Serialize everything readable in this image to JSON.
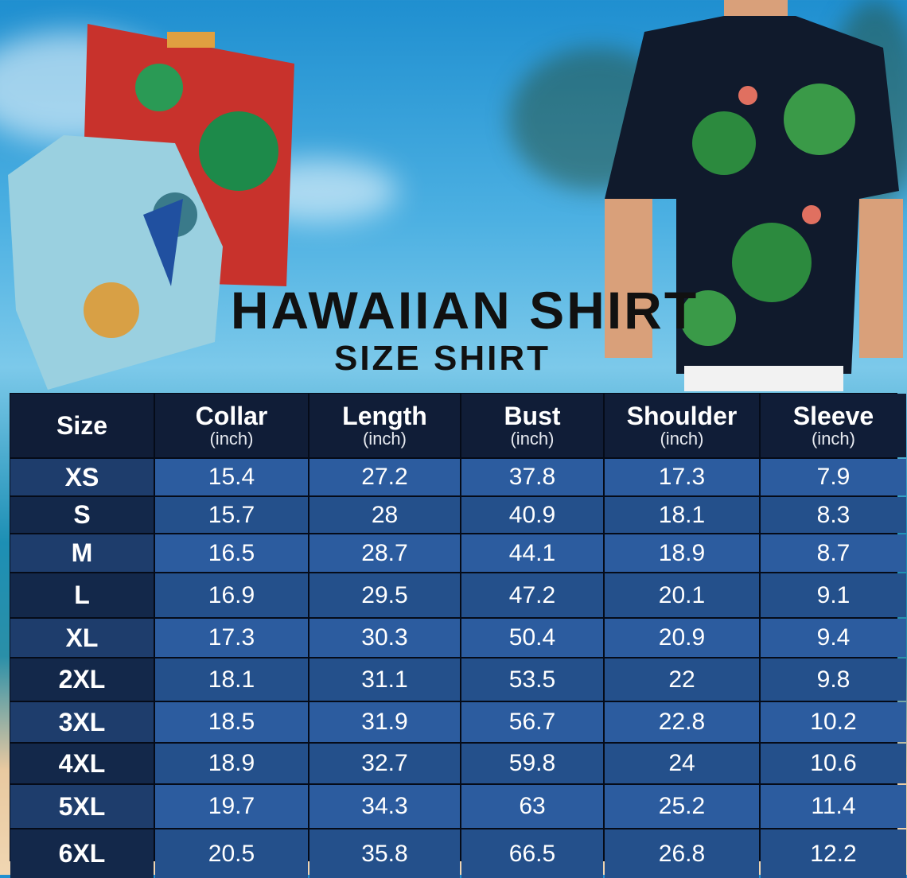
{
  "title": "HAWAIIAN SHIRT",
  "subtitle": "SIZE SHIRT",
  "colors": {
    "header_bg": "#101d37",
    "row_light": "#2c5c9f",
    "row_dark": "#24508b",
    "size_col": "#13284a"
  },
  "table": {
    "headers": [
      {
        "label": "Size",
        "unit": ""
      },
      {
        "label": "Collar",
        "unit": "(inch)"
      },
      {
        "label": "Length",
        "unit": "(inch)"
      },
      {
        "label": "Bust",
        "unit": "(inch)"
      },
      {
        "label": "Shoulder",
        "unit": "(inch)"
      },
      {
        "label": "Sleeve",
        "unit": "(inch)"
      }
    ],
    "rows": [
      [
        "XS",
        "15.4",
        "27.2",
        "37.8",
        "17.3",
        "7.9"
      ],
      [
        "S",
        "15.7",
        "28",
        "40.9",
        "18.1",
        "8.3"
      ],
      [
        "M",
        "16.5",
        "28.7",
        "44.1",
        "18.9",
        "8.7"
      ],
      [
        "L",
        "16.9",
        "29.5",
        "47.2",
        "20.1",
        "9.1"
      ],
      [
        "XL",
        "17.3",
        "30.3",
        "50.4",
        "20.9",
        "9.4"
      ],
      [
        "2XL",
        "18.1",
        "31.1",
        "53.5",
        "22",
        "9.8"
      ],
      [
        "3XL",
        "18.5",
        "31.9",
        "56.7",
        "22.8",
        "10.2"
      ],
      [
        "4XL",
        "18.9",
        "32.7",
        "59.8",
        "24",
        "10.6"
      ],
      [
        "5XL",
        "19.7",
        "34.3",
        "63",
        "25.2",
        "11.4"
      ],
      [
        "6XL",
        "20.5",
        "35.8",
        "66.5",
        "26.8",
        "12.2"
      ]
    ]
  }
}
